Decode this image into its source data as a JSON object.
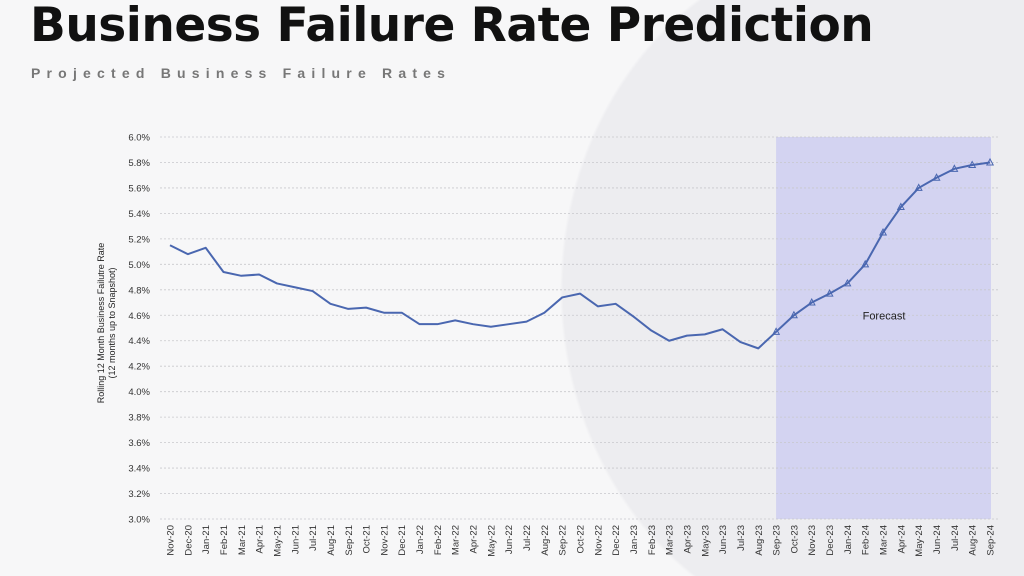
{
  "header": {
    "title": "Business Failure Rate Prediction",
    "subtitle": "Projected Business Failure Rates"
  },
  "chart_data": {
    "type": "line",
    "title": "Business Failure Rate Prediction",
    "ylabel_line1": "Rolling 12 Month Business Failutre Rate",
    "ylabel_line2": "(12 months up to Snapshot)",
    "xlabel": "",
    "ylim": [
      3.0,
      6.0
    ],
    "yticks": [
      "3.0%",
      "3.2%",
      "3.4%",
      "3.6%",
      "3.8%",
      "4.0%",
      "4.2%",
      "4.4%",
      "4.6%",
      "4.8%",
      "5.0%",
      "5.2%",
      "5.4%",
      "5.6%",
      "5.8%",
      "6.0%"
    ],
    "grid": true,
    "categories": [
      "Nov-20",
      "Dec-20",
      "Jan-21",
      "Feb-21",
      "Mar-21",
      "Apr-21",
      "May-21",
      "Jun-21",
      "Jul-21",
      "Aug-21",
      "Sep-21",
      "Oct-21",
      "Nov-21",
      "Dec-21",
      "Jan-22",
      "Feb-22",
      "Mar-22",
      "Apr-22",
      "May-22",
      "Jun-22",
      "Jul-22",
      "Aug-22",
      "Sep-22",
      "Oct-22",
      "Nov-22",
      "Dec-22",
      "Jan-23",
      "Feb-23",
      "Mar-23",
      "Apr-23",
      "May-23",
      "Jun-23",
      "Jul-23",
      "Aug-23",
      "Sep-23",
      "Oct-23",
      "Nov-23",
      "Dec-23",
      "Jan-24",
      "Feb-24",
      "Mar-24",
      "Apr-24",
      "May-24",
      "Jun-24",
      "Jul-24",
      "Aug-24",
      "Sep-24"
    ],
    "values": [
      5.15,
      5.08,
      5.13,
      4.94,
      4.91,
      4.92,
      4.85,
      4.82,
      4.79,
      4.69,
      4.65,
      4.66,
      4.62,
      4.62,
      4.53,
      4.53,
      4.56,
      4.53,
      4.51,
      4.53,
      4.55,
      4.62,
      4.74,
      4.77,
      4.67,
      4.69,
      4.59,
      4.48,
      4.4,
      4.44,
      4.45,
      4.49,
      4.39,
      4.34,
      4.47,
      4.6,
      4.7,
      4.77,
      4.85,
      5.0,
      5.25,
      5.45,
      5.6,
      5.68,
      5.75,
      5.78,
      5.8
    ],
    "forecast_start": "Sep-23",
    "forecast_end": "Sep-24",
    "forecast_label": "Forecast",
    "line_color": "#4a67b0",
    "forecast_fill": "#c9c9f2"
  }
}
